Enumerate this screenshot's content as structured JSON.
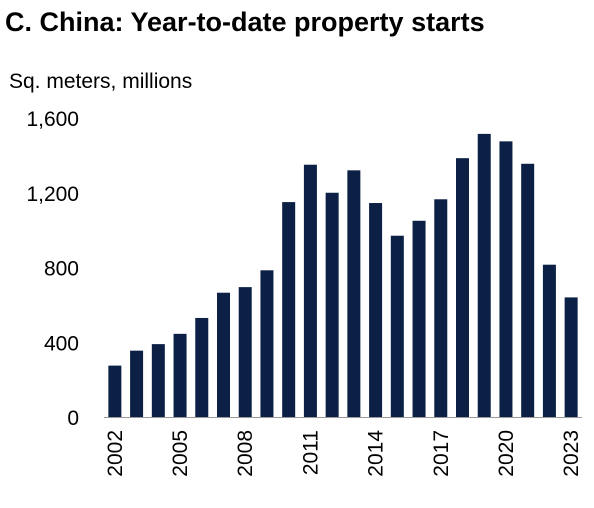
{
  "chart_data": {
    "type": "bar",
    "title": "C. China: Year-to-date property starts",
    "ylabel": "Sq. meters, millions",
    "categories": [
      "2002",
      "2003",
      "2004",
      "2005",
      "2006",
      "2007",
      "2008",
      "2009",
      "2010",
      "2011",
      "2012",
      "2013",
      "2014",
      "2015",
      "2016",
      "2017",
      "2018",
      "2019",
      "2020",
      "2021",
      "2022",
      "2023"
    ],
    "x_tick_labels": [
      "2002",
      "2005",
      "2008",
      "2011",
      "2014",
      "2017",
      "2020",
      "2023"
    ],
    "values": [
      275,
      355,
      390,
      445,
      530,
      665,
      695,
      785,
      1150,
      1350,
      1200,
      1320,
      1145,
      970,
      1050,
      1165,
      1385,
      1515,
      1475,
      1355,
      815,
      640
    ],
    "ylim": [
      0,
      1600
    ],
    "y_ticks": [
      0,
      400,
      800,
      1200,
      1600
    ],
    "y_tick_labels": [
      "0",
      "400",
      "800",
      "1,200",
      "1,600"
    ],
    "grid": false,
    "colors": {
      "bar": "#0b2044",
      "axis": "#9a9a9a"
    }
  }
}
